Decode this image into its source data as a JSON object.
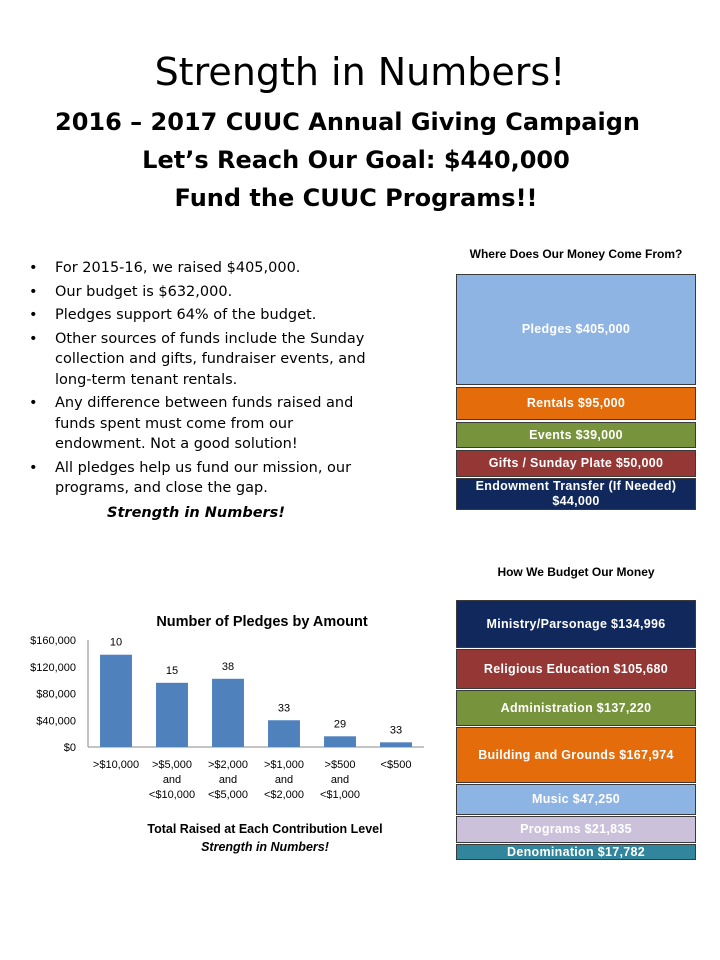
{
  "header": {
    "title": "Strength in Numbers!",
    "line2": "2016 – 2017 CUUC Annual Giving Campaign",
    "line3": "Let’s Reach Our Goal:  $440,000",
    "line4": "Fund the CUUC Programs!!"
  },
  "bullets": [
    "For 2015-16, we raised $405,000.",
    "Our budget is $632,000.",
    "Pledges support 64% of the budget.",
    "Other sources of funds include the Sunday collection and gifts, fundraiser events, and long-term tenant rentals.",
    " Any difference between funds raised and funds spent must come from our endowment.   Not a good solution!",
    "All pledges help us fund our mission, our programs, and close the gap."
  ],
  "strength_tagline": "Strength in Numbers!",
  "income": {
    "heading": "Where Does Our Money Come From?",
    "items": [
      {
        "label": "Pledges $405,000",
        "color": "#8eb4e3"
      },
      {
        "label": "Rentals $95,000",
        "color": "#e46c0a"
      },
      {
        "label": "Events $39,000",
        "color": "#77933c"
      },
      {
        "label": "Gifts / Sunday Plate $50,000",
        "color": "#953735"
      },
      {
        "label": "Endowment Transfer (If Needed) $44,000",
        "color": "#10285c"
      }
    ]
  },
  "budget": {
    "heading": "How We Budget Our Money",
    "items": [
      {
        "label": "Ministry/Parsonage $134,996",
        "color": "#10285c"
      },
      {
        "label": "Religious Education $105,680",
        "color": "#953735"
      },
      {
        "label": "Administration $137,220",
        "color": "#77933c"
      },
      {
        "label": "Building and Grounds $167,974",
        "color": "#e46c0a"
      },
      {
        "label": "Music $47,250",
        "color": "#8eb4e3"
      },
      {
        "label": "Programs $21,835",
        "color": "#ccc1da"
      },
      {
        "label": "Denomination $17,782",
        "color": "#31859c"
      }
    ]
  },
  "chart_data": {
    "type": "bar",
    "title": "Number of Pledges by Amount",
    "categories": [
      ">$10,000",
      ">$5,000 and <$10,000",
      ">$2,000 and <$5,000",
      ">$1,000 and <$2,000",
      ">$500 and <$1,000",
      "<$500"
    ],
    "category_lines": [
      [
        ">$10,000"
      ],
      [
        ">$5,000",
        "and",
        "<$10,000"
      ],
      [
        ">$2,000",
        "and",
        "<$5,000"
      ],
      [
        ">$1,000",
        "and",
        "<$2,000"
      ],
      [
        ">$500",
        "and",
        "<$1,000"
      ],
      [
        "<$500"
      ]
    ],
    "values": [
      138000,
      96000,
      102000,
      40000,
      16000,
      7000
    ],
    "data_labels": [
      "10",
      "15",
      "38",
      "33",
      "29",
      "33"
    ],
    "yticks": [
      "$0",
      "$40,000",
      "$80,000",
      "$120,000",
      "$160,000"
    ],
    "ylim": [
      0,
      160000
    ],
    "bar_color": "#4f81bd"
  },
  "chart_caption": {
    "line1": "Total Raised at Each Contribution Level",
    "line2": "Strength in Numbers!"
  }
}
